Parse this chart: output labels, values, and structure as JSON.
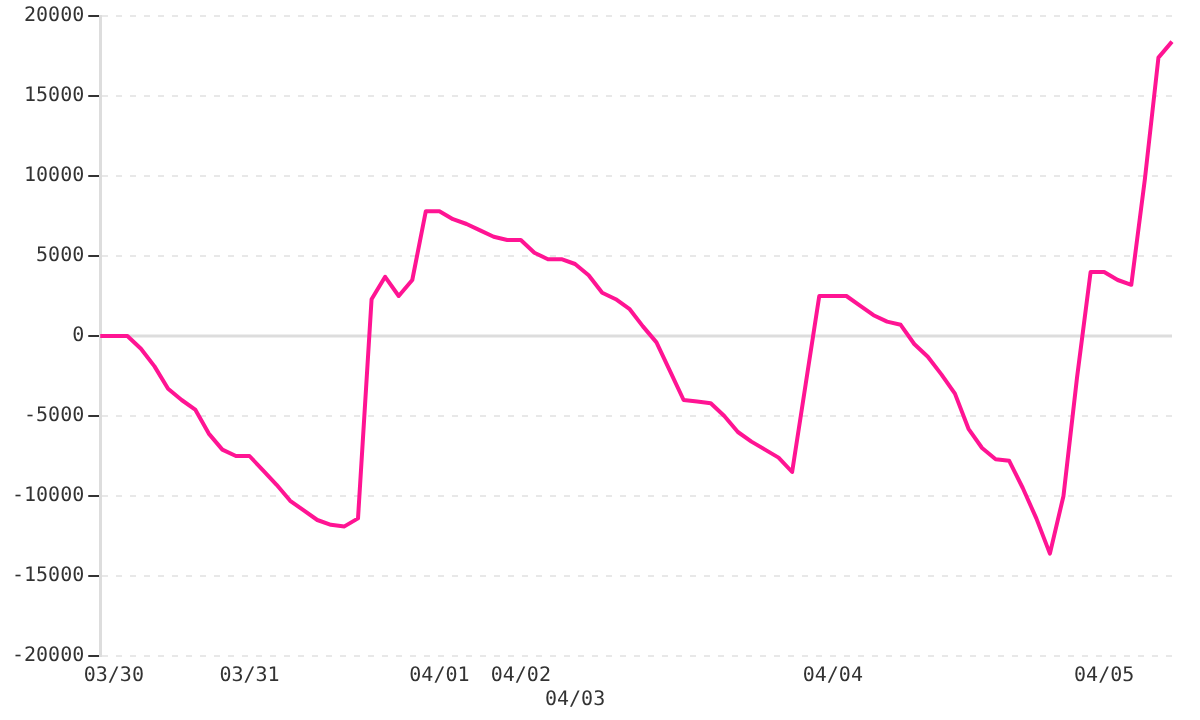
{
  "chart_data": {
    "type": "line",
    "categories": [
      null,
      "03/30",
      null,
      null,
      null,
      null,
      null,
      null,
      null,
      null,
      null,
      "03/31",
      null,
      null,
      null,
      null,
      null,
      null,
      null,
      null,
      null,
      null,
      null,
      null,
      null,
      "04/01",
      null,
      null,
      null,
      null,
      null,
      "04/02",
      null,
      null,
      null,
      "04/03",
      null,
      null,
      null,
      null,
      null,
      null,
      null,
      null,
      null,
      null,
      null,
      null,
      null,
      null,
      null,
      null,
      null,
      null,
      "04/04",
      null,
      null,
      null,
      null,
      null,
      null,
      null,
      null,
      null,
      null,
      null,
      null,
      null,
      null,
      null,
      null,
      null,
      null,
      null,
      "04/05",
      null,
      null,
      null,
      null,
      null
    ],
    "series": [
      {
        "color": "#ff1493",
        "values": [
          0,
          0,
          0,
          -800,
          -1900,
          -3300,
          -4000,
          -4600,
          -6100,
          -7100,
          -7500,
          -7500,
          -8400,
          -9300,
          -10300,
          -10900,
          -11500,
          -11800,
          -11900,
          -11400,
          2300,
          3700,
          2500,
          3500,
          7800,
          7800,
          7300,
          7000,
          6600,
          6200,
          6000,
          6000,
          5200,
          4800,
          4800,
          4500,
          3800,
          2700,
          2300,
          1700,
          600,
          -400,
          -2200,
          -4000,
          -4100,
          -4200,
          -5000,
          -6000,
          -6600,
          -7100,
          -7600,
          -8500,
          -3000,
          2500,
          2500,
          2500,
          1900,
          1300,
          900,
          700,
          -500,
          -1300,
          -2400,
          -3600,
          -5800,
          -7000,
          -7700,
          -7800,
          -9500,
          -11400,
          -13600,
          -10000,
          -2600,
          4000,
          4000,
          3500,
          3200,
          9800,
          17400,
          18400
        ]
      }
    ],
    "ylim": [
      -20000,
      20000
    ],
    "yticks": [
      -20000,
      -15000,
      -10000,
      -5000,
      0,
      5000,
      10000,
      15000,
      20000
    ],
    "grid": "y",
    "ref_lines": [
      {
        "axis": "y",
        "value": 0,
        "color": "#dddddd"
      }
    ],
    "legend": false,
    "marker": "none",
    "line_style": "solid"
  }
}
